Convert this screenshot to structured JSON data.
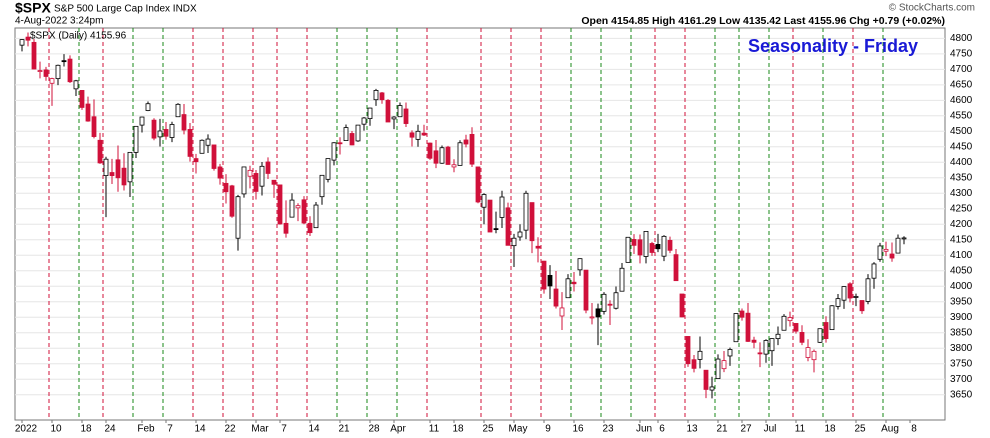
{
  "chart_data": {
    "type": "candlestick",
    "symbol": "$SPX",
    "subtitle": "S&P 500 Large Cap Index INDX",
    "date": "4-Aug-2022 3:24pm",
    "quote": "Open 4154.85 High 4161.29 Low 4135.42 Last 4155.96 Chg +0.79 (+0.02%)",
    "credit": "© StockCharts.com",
    "title": "Seasonality - Friday",
    "title_color": "#1a1ad6",
    "categories": [
      "2022",
      null,
      null,
      null,
      null,
      "10",
      null,
      null,
      null,
      null,
      "18",
      null,
      null,
      null,
      "24",
      null,
      null,
      null,
      null,
      null,
      "Feb",
      null,
      null,
      null,
      "7",
      null,
      null,
      null,
      null,
      "14",
      null,
      null,
      null,
      null,
      "22",
      null,
      null,
      null,
      null,
      "Mar",
      null,
      null,
      null,
      "7",
      null,
      null,
      null,
      null,
      "14",
      null,
      null,
      null,
      null,
      "21",
      null,
      null,
      null,
      null,
      "28",
      null,
      null,
      null,
      "Apr",
      null,
      null,
      null,
      null,
      null,
      "11",
      null,
      null,
      null,
      "18",
      null,
      null,
      null,
      null,
      "25",
      null,
      null,
      null,
      null,
      "May",
      null,
      null,
      null,
      null,
      "9",
      null,
      null,
      null,
      null,
      "16",
      null,
      null,
      null,
      null,
      "23",
      null,
      null,
      null,
      null,
      null,
      "Jun",
      null,
      null,
      "6",
      null,
      null,
      null,
      null,
      "13",
      null,
      null,
      null,
      null,
      "21",
      null,
      null,
      null,
      "27",
      null,
      null,
      null,
      "Jul",
      null,
      null,
      null,
      null,
      "11",
      null,
      null,
      null,
      null,
      "18",
      null,
      null,
      null,
      null,
      "25",
      null,
      null,
      null,
      null,
      "Aug",
      null,
      null,
      null,
      "8"
    ],
    "series": [
      {
        "name": "$SPX (Daily) 4155.96",
        "open": [
          4778,
          4804,
          4787,
          4693,
          4698,
          4655,
          4670,
          4728,
          4733,
          4637,
          4632,
          4588,
          4547,
          4471,
          4357,
          4367,
          4408,
          4381,
          4337,
          4432,
          4520,
          4567,
          4536,
          4482,
          4506,
          4480,
          4547,
          4554,
          4506,
          4412,
          4429,
          4455,
          4456,
          4385,
          4332,
          4324,
          4155,
          4298,
          4355,
          4364,
          4323,
          4401,
          4342,
          4327,
          4203,
          4223,
          4253,
          4279,
          4203,
          4189,
          4289,
          4345,
          4407,
          4463,
          4470,
          4493,
          4469,
          4523,
          4541,
          4602,
          4624,
          4600,
          4540,
          4547,
          4572,
          4495,
          4474,
          4494,
          4462,
          4437,
          4397,
          4449,
          4385,
          4390,
          4472,
          4490,
          4385,
          4255,
          4278,
          4186,
          4222,
          4253,
          4131,
          4159,
          4181,
          4270,
          4129,
          4081,
          4035,
          3991,
          3904,
          3963,
          4013,
          4053,
          4052,
          3900,
          3927,
          3919,
          3942,
          3929,
          3984,
          4077,
          4151,
          4150,
          4096,
          4138,
          4135,
          4097,
          4148,
          4102,
          3975,
          3838,
          3763,
          3764,
          3729,
          3665,
          3702,
          3734,
          3775,
          3821,
          3920,
          3913,
          3826,
          3785,
          3781,
          3792,
          3831,
          3858,
          3889,
          3880,
          3851,
          3770,
          3763,
          3819,
          3883,
          3860,
          3935,
          3955,
          4008,
          3966,
          3954,
          3951,
          4026,
          4087,
          4113,
          4104,
          4107,
          4154.85,
          null
        ],
        "high": [
          4797,
          4819,
          4798,
          4725,
          4708,
          4673,
          4715,
          4749,
          4745,
          4666,
          4633,
          4612,
          4603,
          4495,
          4418,
          4411,
          4454,
          4429,
          4433,
          4516,
          4547,
          4596,
          4542,
          4540,
          4530,
          4531,
          4591,
          4588,
          4527,
          4427,
          4474,
          4490,
          4456,
          4395,
          4362,
          4327,
          4295,
          4385,
          4389,
          4375,
          4401,
          4416,
          4342,
          4327,
          4277,
          4300,
          4268,
          4291,
          4226,
          4272,
          4358,
          4412,
          4465,
          4481,
          4522,
          4501,
          4520,
          4546,
          4576,
          4637,
          4627,
          4604,
          4549,
          4593,
          4593,
          4503,
          4521,
          4521,
          4464,
          4472,
          4454,
          4453,
          4410,
          4471,
          4489,
          4513,
          4386,
          4300,
          4278,
          4241,
          4308,
          4270,
          4169,
          4200,
          4308,
          4270,
          4158,
          4082,
          4068,
          4049,
          3981,
          4039,
          4046,
          4090,
          4052,
          3946,
          3944,
          3981,
          3955,
          3999,
          4075,
          4158,
          4168,
          4167,
          4177,
          4143,
          4169,
          4165,
          4160,
          4120,
          3975,
          3839,
          3778,
          3838,
          3729,
          3708,
          3780,
          3791,
          3802,
          3913,
          3928,
          3946,
          3837,
          3819,
          3829,
          3832,
          3870,
          3910,
          3918,
          3880,
          3874,
          3829,
          3796,
          3863,
          3903,
          3939,
          3975,
          4000,
          4013,
          3976,
          3954,
          4039,
          4078,
          4140,
          4144,
          4141,
          4167,
          4161.29,
          null
        ],
        "low": [
          4758,
          4774,
          4700,
          4671,
          4663,
          4582,
          4649,
          4709,
          4656,
          4614,
          4569,
          4531,
          4477,
          4395,
          4223,
          4330,
          4305,
          4309,
          4288,
          4414,
          4496,
          4565,
          4471,
          4451,
          4473,
          4465,
          4547,
          4490,
          4402,
          4364,
          4429,
          4430,
          4373,
          4328,
          4267,
          4221,
          4115,
          4286,
          4316,
          4280,
          4293,
          4346,
          4285,
          4199,
          4157,
          4223,
          4210,
          4200,
          4162,
          4188,
          4263,
          4335,
          4390,
          4425,
          4470,
          4455,
          4466,
          4502,
          4518,
          4582,
          4589,
          4530,
          4507,
          4546,
          4514,
          4451,
          4450,
          4485,
          4408,
          4381,
          4395,
          4392,
          4368,
          4390,
          4448,
          4385,
          4268,
          4200,
          4175,
          4171,
          4188,
          4132,
          4062,
          4147,
          4152,
          4107,
          4077,
          3976,
          3959,
          3928,
          3859,
          3963,
          3983,
          4034,
          3913,
          3877,
          3810,
          3909,
          3875,
          3925,
          3984,
          4077,
          4104,
          4074,
          4074,
          4098,
          4110,
          4081,
          4107,
          4017,
          3900,
          3740,
          3722,
          3735,
          3639,
          3638,
          3702,
          3723,
          3743,
          3821,
          3889,
          3820,
          3800,
          3739,
          3753,
          3743,
          3810,
          3858,
          3870,
          3847,
          3810,
          3758,
          3722,
          3817,
          3818,
          3860,
          3925,
          3927,
          3948,
          3936,
          3911,
          3942,
          3992,
          4079,
          4097,
          4079,
          4107,
          4135.42,
          null
        ],
        "close": [
          4796,
          4794,
          4701,
          4696,
          4677,
          4670,
          4713,
          4726,
          4660,
          4663,
          4577,
          4533,
          4483,
          4398,
          4410,
          4357,
          4350,
          4327,
          4432,
          4516,
          4546,
          4589,
          4478,
          4501,
          4484,
          4522,
          4587,
          4504,
          4419,
          4402,
          4471,
          4475,
          4380,
          4349,
          4305,
          4226,
          4289,
          4385,
          4374,
          4306,
          4387,
          4364,
          4329,
          4201,
          4171,
          4278,
          4260,
          4204,
          4173,
          4262,
          4358,
          4412,
          4463,
          4461,
          4512,
          4456,
          4520,
          4543,
          4575,
          4632,
          4602,
          4530,
          4546,
          4583,
          4525,
          4481,
          4500,
          4488,
          4413,
          4397,
          4447,
          4393,
          4392,
          4463,
          4459,
          4394,
          4272,
          4296,
          4175,
          4184,
          4288,
          4132,
          4155,
          4175,
          4300,
          4147,
          4123,
          3991,
          4001,
          3936,
          3930,
          4024,
          4008,
          4089,
          3923,
          3901,
          3901,
          3974,
          3941,
          3979,
          4058,
          4158,
          4132,
          4101,
          4177,
          4109,
          4121,
          4161,
          4116,
          4018,
          3901,
          3750,
          3735,
          3790,
          3667,
          3675,
          3765,
          3760,
          3796,
          3912,
          3900,
          3822,
          3819,
          3785,
          3825,
          3831,
          3845,
          3903,
          3899,
          3855,
          3819,
          3802,
          3790,
          3863,
          3831,
          3937,
          3960,
          3999,
          3962,
          3967,
          3921,
          4024,
          4072,
          4130,
          4119,
          4091,
          4155,
          4155.96,
          null
        ]
      }
    ],
    "up_color": "#000000",
    "down_color": "#d0103a",
    "ylim": [
      3620,
      4885
    ],
    "yticks": [
      3650,
      3700,
      3750,
      3800,
      3850,
      3900,
      3950,
      4000,
      4050,
      4100,
      4150,
      4200,
      4250,
      4300,
      4350,
      4400,
      4450,
      4500,
      4550,
      4600,
      4650,
      4700,
      4750,
      4800
    ],
    "grid": true
  }
}
